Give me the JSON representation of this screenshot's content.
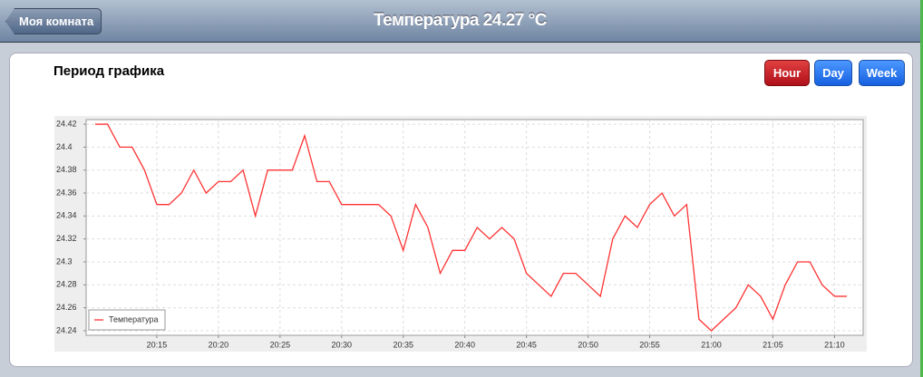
{
  "header": {
    "back_button": "Моя комната",
    "title": "Температура 24.27 °C"
  },
  "period_label": "Период графика",
  "period_buttons": [
    "Hour",
    "Day",
    "Week"
  ],
  "chart_data": {
    "type": "line",
    "x": [
      null,
      null,
      null,
      null,
      null,
      "20:15",
      null,
      null,
      null,
      null,
      "20:20",
      null,
      null,
      null,
      null,
      "20:25",
      null,
      null,
      null,
      null,
      "20:30",
      null,
      null,
      null,
      null,
      "20:35",
      null,
      null,
      null,
      null,
      "20:40",
      null,
      null,
      null,
      null,
      "20:45",
      null,
      null,
      null,
      null,
      "20:50",
      null,
      null,
      null,
      null,
      "20:55",
      null,
      null,
      null,
      null,
      "21:00",
      null,
      null,
      null,
      null,
      "21:05",
      null,
      null,
      null,
      null,
      "21:10",
      null
    ],
    "series": [
      {
        "name": "Температура",
        "color": "#ff3333",
        "values": [
          24.42,
          24.42,
          24.4,
          24.4,
          24.38,
          24.35,
          24.35,
          24.36,
          24.38,
          24.36,
          24.37,
          24.37,
          24.38,
          24.34,
          24.38,
          24.38,
          24.38,
          24.41,
          24.37,
          24.37,
          24.35,
          24.35,
          24.35,
          24.35,
          24.34,
          24.31,
          24.35,
          24.33,
          24.29,
          24.31,
          24.31,
          24.33,
          24.32,
          24.33,
          24.32,
          24.29,
          24.28,
          24.27,
          24.29,
          24.29,
          24.28,
          24.27,
          24.32,
          24.34,
          24.33,
          24.35,
          24.36,
          24.34,
          24.35,
          24.25,
          24.24,
          24.25,
          24.26,
          24.28,
          24.27,
          24.25,
          24.28,
          24.3,
          24.3,
          24.28,
          24.27,
          24.27
        ]
      }
    ],
    "ylim": [
      24.236,
      24.424
    ],
    "yticks": [
      24.24,
      24.26,
      24.28,
      24.3,
      24.32,
      24.34,
      24.36,
      24.38,
      24.4,
      24.42
    ],
    "grid": true,
    "legend": "lower left"
  }
}
